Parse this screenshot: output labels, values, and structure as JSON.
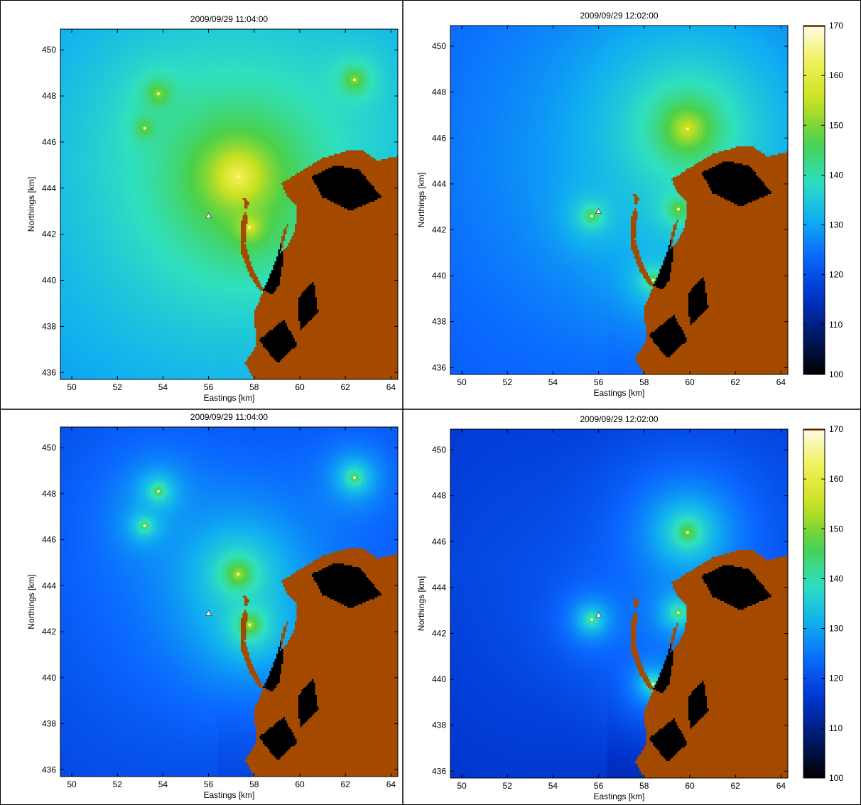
{
  "chart_data": [
    {
      "type": "heatmap",
      "title": "2009/09/29  11:04:00",
      "xlabel": "Eastings [km]",
      "ylabel": "Northings [km]",
      "xlim": [
        49.5,
        64.3
      ],
      "ylim": [
        435.7,
        450.9
      ],
      "xticks": [
        50,
        52,
        54,
        56,
        58,
        60,
        62,
        64
      ],
      "yticks": [
        436,
        438,
        440,
        442,
        444,
        446,
        448,
        450
      ],
      "sources": [
        {
          "x": 57.3,
          "y": 444.5,
          "peak": 162,
          "spread": 1.7
        },
        {
          "x": 57.8,
          "y": 442.3,
          "peak": 156,
          "spread": 1.0
        },
        {
          "x": 53.8,
          "y": 448.1,
          "peak": 150,
          "spread": 0.9
        },
        {
          "x": 53.2,
          "y": 446.6,
          "peak": 148,
          "spread": 0.8
        },
        {
          "x": 62.4,
          "y": 448.7,
          "peak": 150,
          "spread": 0.9
        }
      ],
      "receiver": {
        "x": 56.0,
        "y": 442.8
      },
      "base_level": 122
    },
    {
      "type": "heatmap",
      "title": "2009/09/29  12:02:00",
      "xlabel": "Eastings [km]",
      "ylabel": "Northings [km]",
      "xlim": [
        49.5,
        64.3
      ],
      "ylim": [
        435.7,
        450.9
      ],
      "xticks": [
        50,
        52,
        54,
        56,
        58,
        60,
        62,
        64
      ],
      "yticks": [
        436,
        438,
        440,
        442,
        444,
        446,
        448,
        450
      ],
      "sources": [
        {
          "x": 59.9,
          "y": 446.4,
          "peak": 155,
          "spread": 1.6
        },
        {
          "x": 59.5,
          "y": 442.9,
          "peak": 148,
          "spread": 0.9
        },
        {
          "x": 55.7,
          "y": 442.6,
          "peak": 146,
          "spread": 0.8
        },
        {
          "x": 58.4,
          "y": 439.8,
          "peak": 146,
          "spread": 0.8
        }
      ],
      "receiver": {
        "x": 56.0,
        "y": 442.8
      },
      "base_level": 120,
      "colorbar": {
        "range": [
          100,
          170
        ],
        "ticks": [
          100,
          110,
          120,
          130,
          140,
          150,
          160,
          170
        ]
      }
    },
    {
      "type": "heatmap",
      "title": "2009/09/29  11:04:00",
      "xlabel": "Eastings [km]",
      "ylabel": "Northings [km]",
      "xlim": [
        49.5,
        64.3
      ],
      "ylim": [
        435.7,
        450.9
      ],
      "xticks": [
        50,
        52,
        54,
        56,
        58,
        60,
        62,
        64
      ],
      "yticks": [
        436,
        438,
        440,
        442,
        444,
        446,
        448,
        450
      ],
      "sources": [
        {
          "x": 57.3,
          "y": 444.5,
          "peak": 152,
          "spread": 0.9
        },
        {
          "x": 57.8,
          "y": 442.3,
          "peak": 152,
          "spread": 0.7
        },
        {
          "x": 53.8,
          "y": 448.1,
          "peak": 146,
          "spread": 0.6
        },
        {
          "x": 53.2,
          "y": 446.6,
          "peak": 145,
          "spread": 0.55
        },
        {
          "x": 62.4,
          "y": 448.7,
          "peak": 146,
          "spread": 0.6
        }
      ],
      "receiver": {
        "x": 56.0,
        "y": 442.8
      },
      "base_level": 118
    },
    {
      "type": "heatmap",
      "title": "2009/09/29  12:02:00",
      "xlabel": "Eastings [km]",
      "ylabel": "Northings [km]",
      "xlim": [
        49.5,
        64.3
      ],
      "ylim": [
        435.7,
        450.9
      ],
      "xticks": [
        50,
        52,
        54,
        56,
        58,
        60,
        62,
        64
      ],
      "yticks": [
        436,
        438,
        440,
        442,
        444,
        446,
        448,
        450
      ],
      "sources": [
        {
          "x": 59.9,
          "y": 446.4,
          "peak": 148,
          "spread": 0.9
        },
        {
          "x": 59.5,
          "y": 442.9,
          "peak": 144,
          "spread": 0.7
        },
        {
          "x": 55.7,
          "y": 442.6,
          "peak": 142,
          "spread": 0.7
        },
        {
          "x": 58.4,
          "y": 439.8,
          "peak": 142,
          "spread": 0.7
        }
      ],
      "receiver": {
        "x": 56.0,
        "y": 442.8
      },
      "base_level": 116,
      "colorbar": {
        "range": [
          100,
          170
        ],
        "ticks": [
          100,
          110,
          120,
          130,
          140,
          150,
          160,
          170
        ]
      }
    }
  ],
  "colors": {
    "land": "#a34a00",
    "low": "#000000",
    "colormap": [
      "#000000",
      "#001a66",
      "#0033cc",
      "#0a66ff",
      "#10b0f0",
      "#2fe0c0",
      "#4ad04a",
      "#c8e020",
      "#f0f050",
      "#fffbe8"
    ]
  }
}
